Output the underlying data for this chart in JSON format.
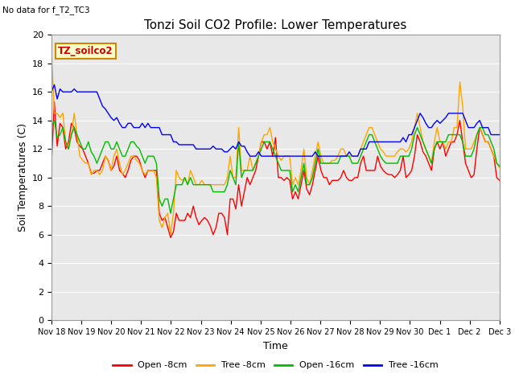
{
  "title": "Tonzi Soil CO2 Profile: Lower Temperatures",
  "subtitle": "No data for f_T2_TC3",
  "ylabel": "Soil Temperatures (C)",
  "xlabel": "Time",
  "box_label": "TZ_soilco2",
  "ylim": [
    0,
    20
  ],
  "yticks": [
    0,
    2,
    4,
    6,
    8,
    10,
    12,
    14,
    16,
    18,
    20
  ],
  "xtick_labels": [
    "Nov 18",
    "Nov 19",
    "Nov 20",
    "Nov 21",
    "Nov 22",
    "Nov 23",
    "Nov 24",
    "Nov 25",
    "Nov 26",
    "Nov 27",
    "Nov 28",
    "Nov 29",
    "Nov 30",
    "Dec 1",
    "Dec 2",
    "Dec 3"
  ],
  "legend_entries": [
    "Open -8cm",
    "Tree -8cm",
    "Open -16cm",
    "Tree -16cm"
  ],
  "legend_colors": [
    "#ff0000",
    "#ffa500",
    "#00bb00",
    "#0000ff"
  ],
  "background_color": "#e8e8e8",
  "title_fontsize": 11,
  "axis_fontsize": 9,
  "open8": [
    11.1,
    15.3,
    12.2,
    13.8,
    13.5,
    12.0,
    12.5,
    13.8,
    13.5,
    12.5,
    12.2,
    12.0,
    11.5,
    11.0,
    10.3,
    10.3,
    10.5,
    10.5,
    11.0,
    11.5,
    11.2,
    10.5,
    10.8,
    11.5,
    10.5,
    10.3,
    10.0,
    10.5,
    11.2,
    11.5,
    11.5,
    11.2,
    10.5,
    10.0,
    10.5,
    10.5,
    10.5,
    10.5,
    7.5,
    7.0,
    7.2,
    6.5,
    5.8,
    6.2,
    7.5,
    7.0,
    7.0,
    7.0,
    7.5,
    7.2,
    8.0,
    7.2,
    6.7,
    7.0,
    7.2,
    7.0,
    6.6,
    6.0,
    6.5,
    7.5,
    7.5,
    7.2,
    6.0,
    8.5,
    8.5,
    7.8,
    9.5,
    8.0,
    9.0,
    10.0,
    9.5,
    10.0,
    10.5,
    11.5,
    12.5,
    12.5,
    12.0,
    12.5,
    11.5,
    12.8,
    10.0,
    10.0,
    9.8,
    10.0,
    9.8,
    8.5,
    9.0,
    8.5,
    9.5,
    10.5,
    9.2,
    8.8,
    9.5,
    10.5,
    11.5,
    10.5,
    10.0,
    10.0,
    9.5,
    9.8,
    9.8,
    9.8,
    10.0,
    10.5,
    10.0,
    9.8,
    9.8,
    10.0,
    10.0,
    11.0,
    11.5,
    10.5,
    10.5,
    10.5,
    10.5,
    11.5,
    10.8,
    10.5,
    10.3,
    10.2,
    10.2,
    10.0,
    10.2,
    10.5,
    11.5,
    10.0,
    10.2,
    10.5,
    11.5,
    13.0,
    12.5,
    11.8,
    11.5,
    11.0,
    10.5,
    12.0,
    12.5,
    12.0,
    12.5,
    11.5,
    12.0,
    12.5,
    12.5,
    13.0,
    14.0,
    12.5,
    11.0,
    10.5,
    10.0,
    10.2,
    12.0,
    13.5,
    13.0,
    12.5,
    12.5,
    12.0,
    11.5,
    10.0,
    9.8
  ],
  "tree8": [
    18.8,
    14.5,
    14.5,
    14.2,
    14.5,
    12.5,
    12.0,
    13.0,
    14.5,
    13.0,
    11.5,
    11.2,
    11.0,
    11.0,
    10.2,
    10.5,
    10.5,
    10.2,
    10.5,
    11.5,
    11.2,
    10.5,
    11.5,
    12.0,
    11.0,
    10.2,
    10.5,
    11.0,
    11.5,
    11.5,
    11.2,
    11.0,
    10.5,
    10.2,
    10.5,
    10.5,
    10.5,
    10.0,
    7.0,
    6.5,
    7.2,
    7.5,
    6.0,
    7.5,
    10.5,
    10.0,
    9.8,
    10.0,
    9.5,
    10.5,
    10.0,
    9.5,
    9.5,
    9.8,
    9.5,
    9.5,
    9.5,
    9.5,
    9.5,
    9.5,
    9.5,
    9.5,
    10.0,
    11.5,
    10.0,
    10.0,
    13.5,
    10.5,
    10.5,
    10.5,
    11.5,
    10.5,
    11.0,
    11.5,
    12.5,
    13.0,
    13.0,
    13.5,
    12.5,
    12.0,
    11.5,
    11.2,
    11.5,
    11.5,
    11.5,
    9.5,
    10.0,
    9.5,
    10.5,
    12.0,
    10.0,
    9.5,
    10.5,
    11.5,
    12.5,
    11.5,
    11.0,
    11.0,
    11.0,
    11.2,
    11.2,
    11.5,
    12.0,
    12.0,
    11.5,
    11.5,
    11.5,
    11.5,
    11.5,
    12.0,
    12.5,
    13.0,
    13.5,
    13.5,
    13.0,
    12.5,
    12.0,
    11.8,
    11.5,
    11.5,
    11.5,
    11.5,
    11.8,
    12.0,
    12.0,
    11.8,
    12.0,
    12.5,
    13.5,
    14.5,
    13.5,
    12.5,
    12.0,
    11.5,
    11.0,
    12.5,
    13.5,
    12.5,
    12.5,
    12.0,
    12.5,
    12.5,
    13.5,
    13.5,
    16.7,
    15.0,
    12.0,
    12.0,
    12.0,
    12.5,
    13.0,
    13.5,
    13.0,
    12.5,
    12.5,
    12.0,
    11.5,
    11.0,
    10.7
  ],
  "open16": [
    13.5,
    14.0,
    12.8,
    13.0,
    13.5,
    12.5,
    12.0,
    13.0,
    13.5,
    13.0,
    12.5,
    12.0,
    12.0,
    12.5,
    11.8,
    11.5,
    11.0,
    11.5,
    12.0,
    12.5,
    12.5,
    12.0,
    12.0,
    12.5,
    12.0,
    11.5,
    11.5,
    12.0,
    12.5,
    12.5,
    12.2,
    12.0,
    11.5,
    11.0,
    11.5,
    11.5,
    11.5,
    11.0,
    8.5,
    8.0,
    8.5,
    8.5,
    7.5,
    8.5,
    9.5,
    9.5,
    9.5,
    10.0,
    9.5,
    10.0,
    9.5,
    9.5,
    9.5,
    9.5,
    9.5,
    9.5,
    9.5,
    9.0,
    9.0,
    9.0,
    9.0,
    9.0,
    9.5,
    10.5,
    10.0,
    9.5,
    12.5,
    10.0,
    10.5,
    10.5,
    10.5,
    10.5,
    11.0,
    11.5,
    12.0,
    12.5,
    12.5,
    12.5,
    12.0,
    11.5,
    11.0,
    10.5,
    10.5,
    10.5,
    10.5,
    9.0,
    9.5,
    9.0,
    10.0,
    11.0,
    9.5,
    9.5,
    10.0,
    11.0,
    12.0,
    11.0,
    11.0,
    11.0,
    11.0,
    11.0,
    11.0,
    11.0,
    11.5,
    11.5,
    11.5,
    11.5,
    11.0,
    11.0,
    11.0,
    11.5,
    12.0,
    12.5,
    13.0,
    13.0,
    12.5,
    12.0,
    11.5,
    11.2,
    11.0,
    11.0,
    11.0,
    11.0,
    11.0,
    11.5,
    11.5,
    11.5,
    11.5,
    12.0,
    13.0,
    13.5,
    13.0,
    12.5,
    12.0,
    11.5,
    11.0,
    12.0,
    12.5,
    12.5,
    12.5,
    12.5,
    13.0,
    13.0,
    13.0,
    13.0,
    13.0,
    12.5,
    11.5,
    11.5,
    11.5,
    12.0,
    13.0,
    13.5,
    13.5,
    13.0,
    13.0,
    12.5,
    12.0,
    11.0,
    10.8
  ],
  "tree16": [
    16.0,
    16.5,
    15.5,
    16.2,
    16.0,
    16.0,
    16.0,
    16.0,
    16.2,
    16.0,
    16.0,
    16.0,
    16.0,
    16.0,
    16.0,
    16.0,
    16.0,
    15.5,
    15.0,
    14.8,
    14.5,
    14.2,
    14.0,
    14.2,
    13.8,
    13.5,
    13.5,
    13.8,
    13.8,
    13.5,
    13.5,
    13.5,
    13.8,
    13.5,
    13.8,
    13.5,
    13.5,
    13.5,
    13.5,
    13.0,
    13.0,
    13.0,
    13.0,
    12.5,
    12.5,
    12.3,
    12.3,
    12.3,
    12.3,
    12.3,
    12.3,
    12.0,
    12.0,
    12.0,
    12.0,
    12.0,
    12.0,
    12.2,
    12.0,
    12.0,
    12.0,
    11.8,
    11.8,
    12.0,
    12.2,
    12.0,
    12.5,
    12.2,
    12.2,
    11.8,
    11.5,
    11.5,
    11.5,
    11.8,
    11.5,
    11.5,
    11.5,
    11.5,
    11.5,
    11.5,
    11.5,
    11.5,
    11.5,
    11.5,
    11.5,
    11.5,
    11.5,
    11.5,
    11.5,
    11.5,
    11.5,
    11.5,
    11.5,
    11.8,
    11.5,
    11.5,
    11.5,
    11.5,
    11.5,
    11.5,
    11.5,
    11.5,
    11.5,
    11.5,
    11.5,
    11.8,
    11.5,
    11.5,
    11.5,
    12.0,
    12.0,
    12.0,
    12.5,
    12.5,
    12.5,
    12.5,
    12.5,
    12.5,
    12.5,
    12.5,
    12.5,
    12.5,
    12.5,
    12.5,
    12.8,
    12.5,
    13.0,
    13.0,
    13.5,
    14.0,
    14.5,
    14.2,
    13.8,
    13.5,
    13.5,
    13.8,
    14.0,
    13.8,
    14.0,
    14.2,
    14.5,
    14.5,
    14.5,
    14.5,
    14.5,
    14.5,
    14.0,
    13.5,
    13.5,
    13.5,
    13.8,
    14.0,
    13.5,
    13.5,
    13.5,
    13.0,
    13.0,
    13.0,
    13.0
  ]
}
